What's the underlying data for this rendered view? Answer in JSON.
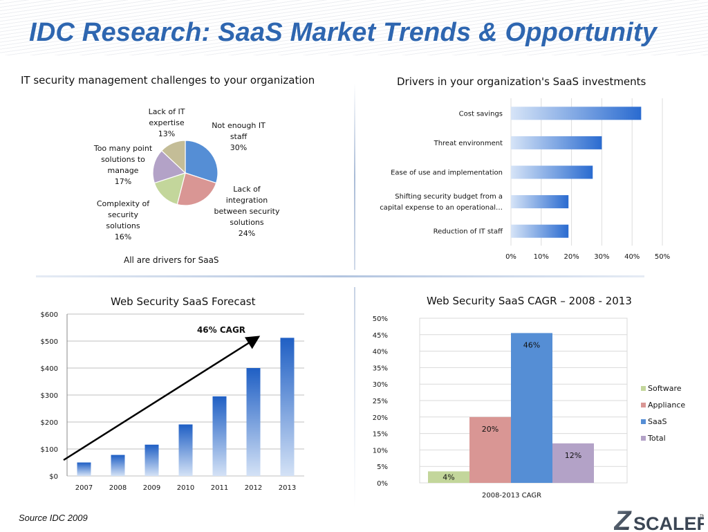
{
  "slide": {
    "title": "IDC Research: SaaS Market Trends & Opportunity",
    "source": "Source IDC 2009",
    "logo_text": "SCALER",
    "logo_mark": "Z",
    "logo_tm": "TM",
    "footnote_pie": "All are drivers for SaaS"
  },
  "colors": {
    "title": "#2e66b0",
    "bar_blue": "#2a6bd0",
    "pie": [
      "#558ed5",
      "#d99694",
      "#c3d69b",
      "#b3a2c7",
      "#c4bd97"
    ],
    "software": "#c3d69b",
    "appliance": "#d99694",
    "saas": "#558ed5",
    "total": "#b3a2c7"
  },
  "chart_data": [
    {
      "type": "pie",
      "title": "IT security management challenges to your organization",
      "slices": [
        {
          "label": "Not enough IT staff",
          "lines": [
            "Not enough IT",
            "staff",
            "30%"
          ],
          "value": 30
        },
        {
          "label": "Lack of integration between security solutions",
          "lines": [
            "Lack of",
            "integration",
            "between security",
            "solutions",
            "24%"
          ],
          "value": 24
        },
        {
          "label": "Complexity of security solutions",
          "lines": [
            "Complexity of",
            "security",
            "solutions",
            "16%"
          ],
          "value": 16
        },
        {
          "label": "Too many point solutions to manage",
          "lines": [
            "Too many point",
            "solutions to",
            "manage",
            "17%"
          ],
          "value": 17
        },
        {
          "label": "Lack of IT expertise",
          "lines": [
            "Lack of IT",
            "expertise",
            "13%"
          ],
          "value": 13
        }
      ]
    },
    {
      "type": "bar",
      "orientation": "horizontal",
      "title": "Drivers in your organization's SaaS investments",
      "categories": [
        [
          "Cost savings"
        ],
        [
          "Threat environment"
        ],
        [
          "Ease of use and implementation"
        ],
        [
          "Shifting security budget from a",
          "capital expense to an operational…"
        ],
        [
          "Reduction of IT staff"
        ]
      ],
      "values": [
        0.43,
        0.3,
        0.27,
        0.19,
        0.19
      ],
      "xlim": [
        0,
        0.5
      ],
      "xticks": [
        "0%",
        "10%",
        "20%",
        "30%",
        "40%",
        "50%"
      ],
      "grid": true
    },
    {
      "type": "bar",
      "title": "Web Security SaaS Forecast",
      "categories": [
        "2007",
        "2008",
        "2009",
        "2010",
        "2011",
        "2012",
        "2013"
      ],
      "values": [
        50,
        78,
        116,
        191,
        295,
        400,
        512
      ],
      "ylim": [
        0,
        600
      ],
      "yticks": [
        "$0",
        "$100",
        "$200",
        "$300",
        "$400",
        "$500",
        "$600"
      ],
      "annotation": "46% CAGR",
      "grid": true
    },
    {
      "type": "bar",
      "title": "Web Security SaaS CAGR – 2008 - 2013",
      "xlabel": "2008-2013 CAGR",
      "series": [
        {
          "name": "Software",
          "value": 0.035,
          "label": "4%"
        },
        {
          "name": "Appliance",
          "value": 0.2,
          "label": "20%"
        },
        {
          "name": "SaaS",
          "value": 0.455,
          "label": "46%"
        },
        {
          "name": "Total",
          "value": 0.12,
          "label": "12%"
        }
      ],
      "ylim": [
        0,
        0.5
      ],
      "yticks": [
        "0%",
        "5%",
        "10%",
        "15%",
        "20%",
        "25%",
        "30%",
        "35%",
        "40%",
        "45%",
        "50%"
      ],
      "legend": "right",
      "grid": true
    }
  ]
}
